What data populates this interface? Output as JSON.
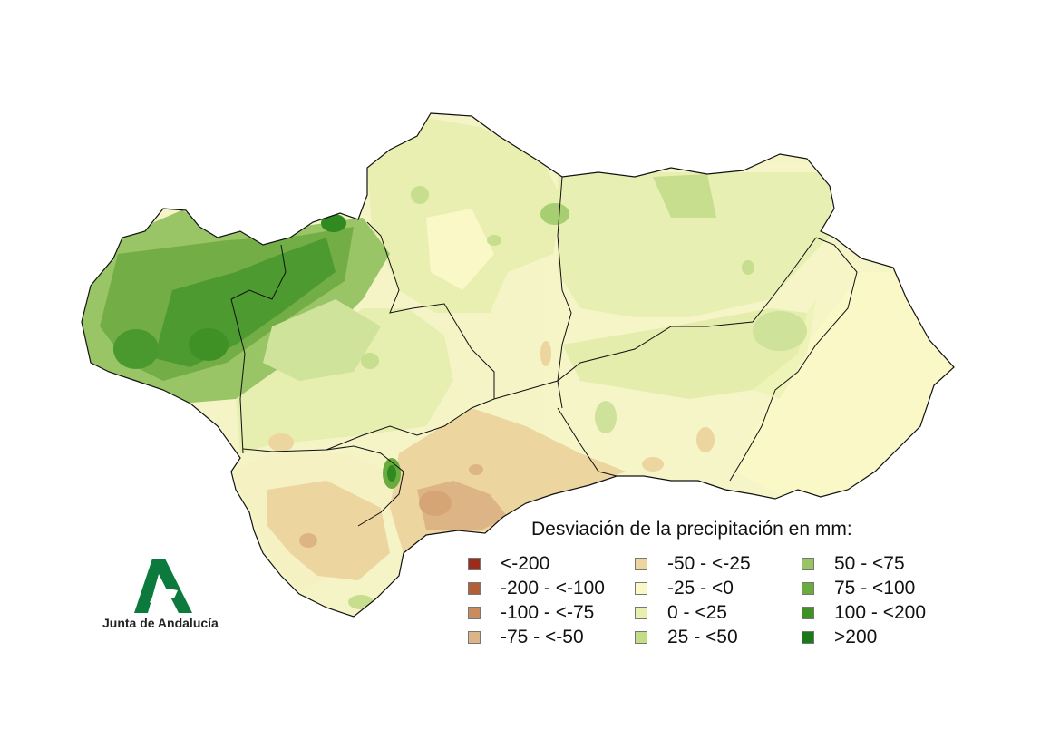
{
  "map": {
    "title": "Desviación de la precipitación en mm:",
    "legend": [
      {
        "label": "<-200",
        "color": "#9b2b1b"
      },
      {
        "label": "-200 - <-100",
        "color": "#b25e38"
      },
      {
        "label": "-100 - <-75",
        "color": "#c98c5f"
      },
      {
        "label": "-75 - <-50",
        "color": "#ddb486"
      },
      {
        "label": "-50 - <-25",
        "color": "#ecd59e"
      },
      {
        "label": "-25 - <0",
        "color": "#fbf8c8"
      },
      {
        "label": "0 - <25",
        "color": "#e8efaf"
      },
      {
        "label": "25 - <50",
        "color": "#c3dc88"
      },
      {
        "label": "50 - <75",
        "color": "#98c463"
      },
      {
        "label": "75 - <100",
        "color": "#6aab3f"
      },
      {
        "label": "100 - <200",
        "color": "#3f9126"
      },
      {
        "label": ">200",
        "color": "#1a7a1a"
      }
    ]
  },
  "logo": {
    "text": "Junta de Andalucía",
    "color": "#0c7a3c"
  }
}
